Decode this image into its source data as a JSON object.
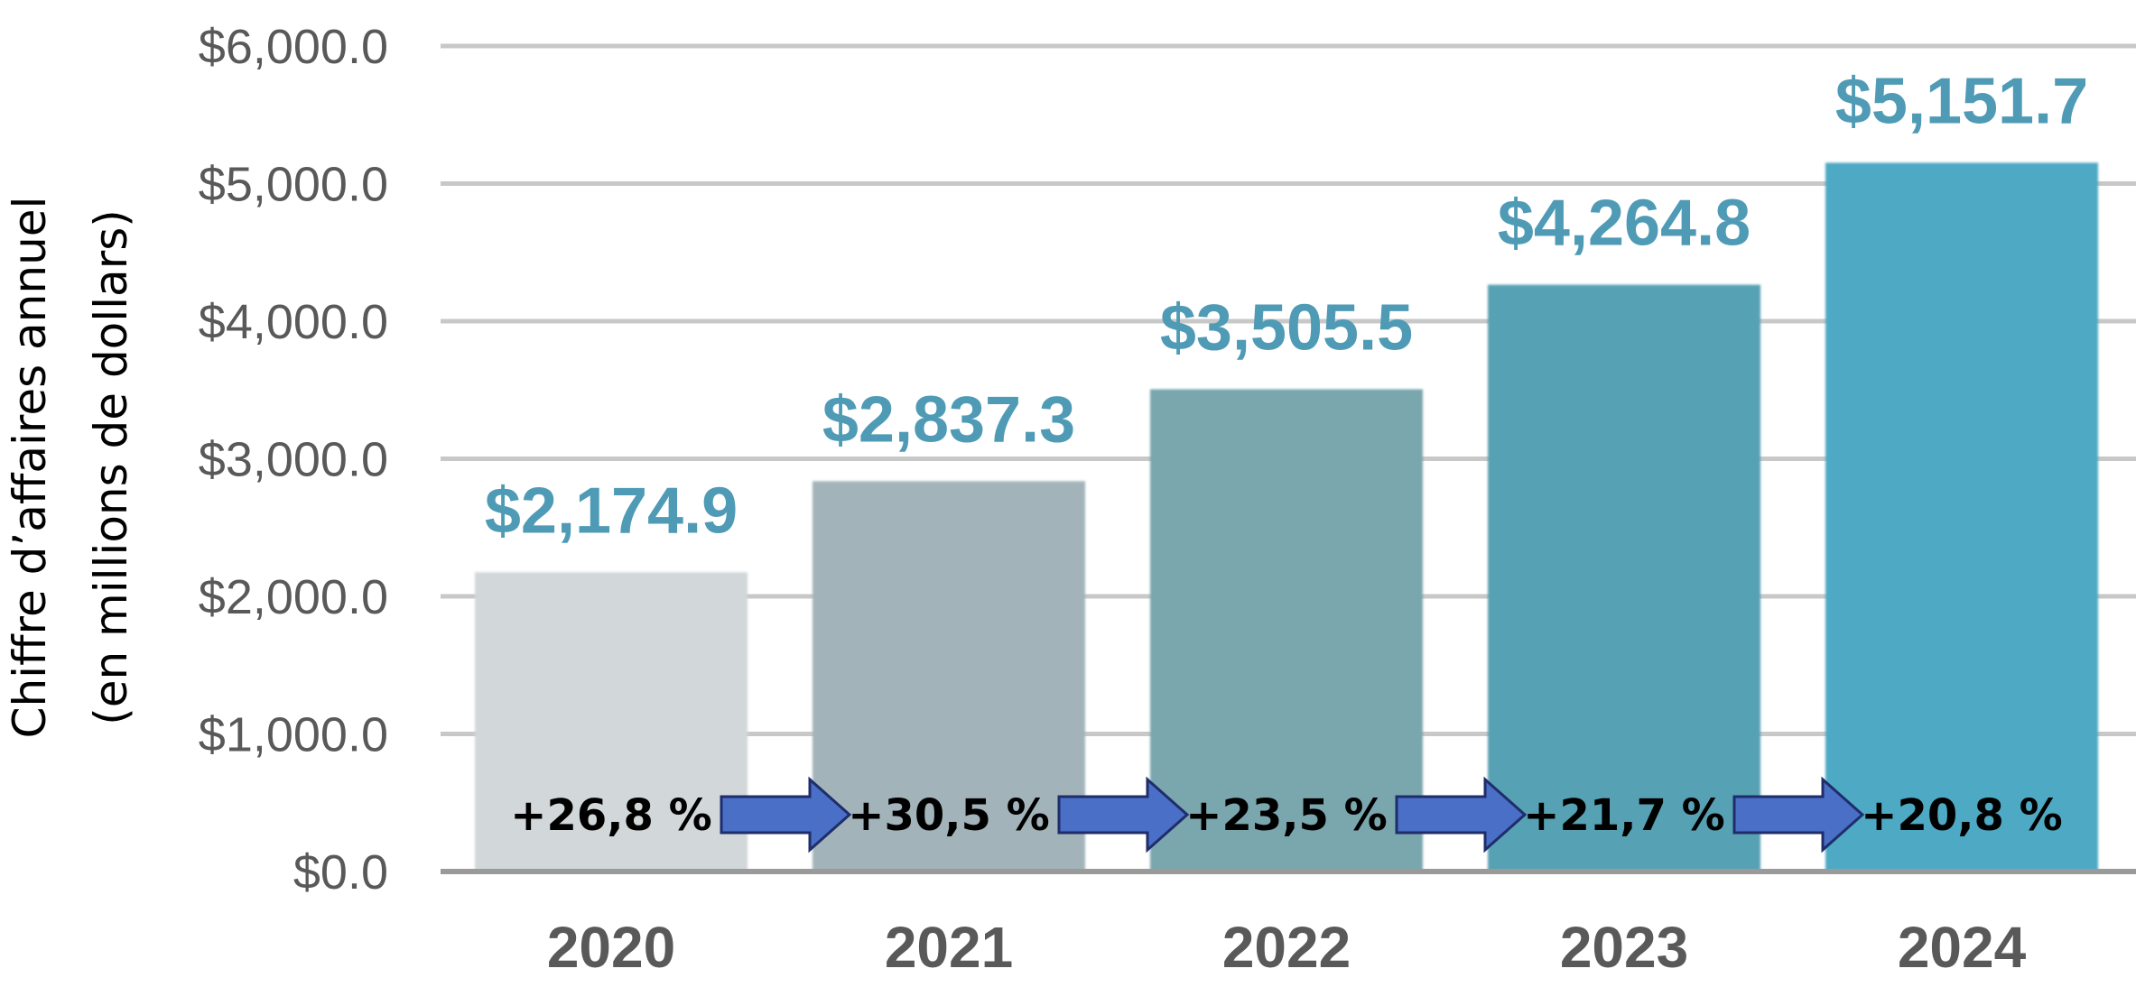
{
  "chart_data": {
    "type": "bar",
    "categories": [
      "2020",
      "2021",
      "2022",
      "2023",
      "2024"
    ],
    "values": [
      2174.9,
      2837.3,
      3505.5,
      4264.8,
      5151.7
    ],
    "value_labels": [
      "$2,174.9",
      "$2,837.3",
      "$3,505.5",
      "$4,264.8",
      "$5,151.7"
    ],
    "growth_labels": [
      "+26,8 %",
      "+30,5 %",
      "+23,5 %",
      "+21,7 %",
      "+20,8 %"
    ],
    "ylabel_lines": [
      "Chiffre d’affaires annuel",
      "(en millions de dollars)"
    ],
    "ylim": [
      0,
      6000
    ],
    "yticks": [
      0,
      1000,
      2000,
      3000,
      4000,
      5000,
      6000
    ],
    "ytick_labels": [
      "$0.0",
      "$1,000.0",
      "$2,000.0",
      "$3,000.0",
      "$4,000.0",
      "$5,000.0",
      "$6,000.0"
    ],
    "grid": true,
    "colors": {
      "bars": [
        "#d2d7d9",
        "#a2b4b9",
        "#7aa6ae",
        "#56a1b3",
        "#4ea9c4"
      ],
      "value_label": "#4f9bb6",
      "arrow_fill": "#4a6fc6",
      "arrow_stroke": "#1f2d6b",
      "grid": "#c8c8c8",
      "baseline": "#9a9a9a"
    }
  }
}
